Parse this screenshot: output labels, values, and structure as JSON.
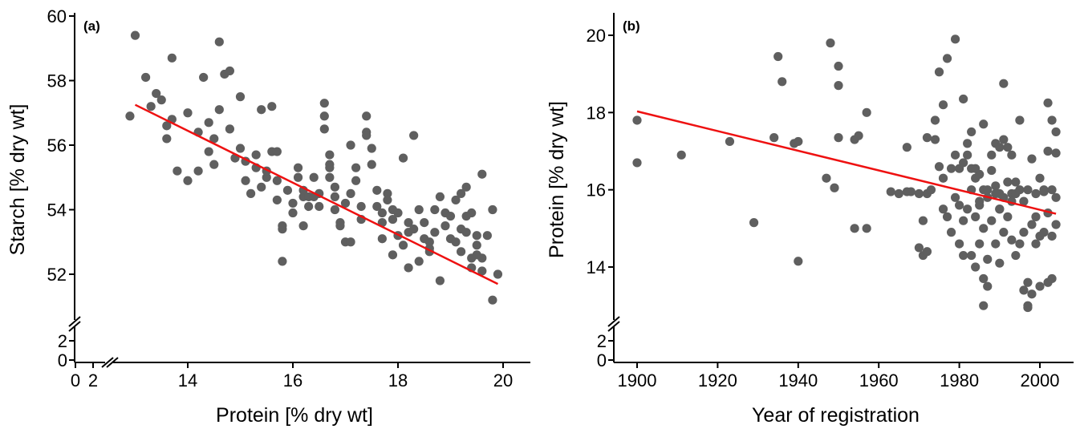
{
  "chart_data": [
    {
      "type": "scatter",
      "panel_label": "(a)",
      "xlabel": "Protein [% dry wt]",
      "ylabel": "Starch [% dry wt]",
      "xlim": [
        12.5,
        20.5
      ],
      "ylim": [
        51,
        60
      ],
      "x_ticks": [
        14,
        16,
        18,
        20
      ],
      "y_ticks": [
        52,
        54,
        56,
        58,
        60
      ],
      "x_break_labels": [
        "0",
        "2"
      ],
      "y_break_labels": [
        "2",
        "0"
      ],
      "grid": false,
      "fit_line": {
        "x": [
          13.0,
          19.9
        ],
        "y": [
          57.25,
          51.7
        ],
        "color": "#ee1111"
      },
      "points": [
        [
          13.0,
          59.4
        ],
        [
          13.2,
          58.1
        ],
        [
          12.9,
          56.9
        ],
        [
          13.3,
          57.2
        ],
        [
          13.4,
          57.6
        ],
        [
          13.5,
          57.4
        ],
        [
          13.6,
          56.2
        ],
        [
          13.6,
          56.6
        ],
        [
          13.7,
          56.8
        ],
        [
          13.7,
          58.7
        ],
        [
          13.8,
          55.2
        ],
        [
          14.0,
          54.9
        ],
        [
          14.0,
          57.0
        ],
        [
          14.2,
          55.2
        ],
        [
          14.2,
          56.4
        ],
        [
          14.3,
          58.1
        ],
        [
          14.4,
          55.8
        ],
        [
          14.4,
          56.7
        ],
        [
          14.5,
          56.2
        ],
        [
          14.5,
          55.4
        ],
        [
          14.6,
          57.1
        ],
        [
          14.6,
          59.2
        ],
        [
          14.7,
          58.2
        ],
        [
          14.8,
          58.3
        ],
        [
          14.8,
          56.5
        ],
        [
          14.9,
          55.6
        ],
        [
          15.0,
          55.9
        ],
        [
          15.0,
          57.5
        ],
        [
          15.1,
          55.5
        ],
        [
          15.1,
          54.9
        ],
        [
          15.2,
          54.5
        ],
        [
          15.3,
          55.7
        ],
        [
          15.3,
          55.3
        ],
        [
          15.4,
          57.1
        ],
        [
          15.4,
          54.7
        ],
        [
          15.5,
          55.0
        ],
        [
          15.5,
          55.2
        ],
        [
          15.6,
          55.8
        ],
        [
          15.6,
          57.2
        ],
        [
          15.7,
          55.8
        ],
        [
          15.7,
          54.9
        ],
        [
          15.7,
          54.3
        ],
        [
          15.8,
          53.4
        ],
        [
          15.8,
          53.5
        ],
        [
          15.8,
          52.4
        ],
        [
          15.9,
          54.6
        ],
        [
          16.0,
          54.2
        ],
        [
          16.0,
          53.9
        ],
        [
          16.1,
          55.3
        ],
        [
          16.1,
          55.0
        ],
        [
          16.2,
          54.6
        ],
        [
          16.2,
          54.4
        ],
        [
          16.3,
          54.4
        ],
        [
          16.3,
          54.1
        ],
        [
          16.4,
          55.0
        ],
        [
          16.4,
          54.4
        ],
        [
          16.5,
          54.1
        ],
        [
          16.5,
          54.5
        ],
        [
          16.6,
          57.3
        ],
        [
          16.6,
          56.9
        ],
        [
          16.6,
          56.5
        ],
        [
          16.7,
          55.7
        ],
        [
          16.7,
          55.4
        ],
        [
          16.7,
          55.3
        ],
        [
          16.7,
          55.0
        ],
        [
          16.8,
          54.7
        ],
        [
          16.8,
          54.4
        ],
        [
          16.8,
          54.0
        ],
        [
          16.9,
          53.6
        ],
        [
          16.9,
          53.5
        ],
        [
          17.0,
          53.0
        ],
        [
          17.0,
          54.2
        ],
        [
          17.1,
          54.5
        ],
        [
          17.1,
          56.0
        ],
        [
          17.2,
          55.3
        ],
        [
          17.2,
          54.9
        ],
        [
          17.3,
          54.1
        ],
        [
          17.3,
          53.7
        ],
        [
          17.4,
          56.4
        ],
        [
          17.4,
          56.9
        ],
        [
          17.4,
          56.3
        ],
        [
          17.5,
          55.9
        ],
        [
          17.5,
          55.4
        ],
        [
          17.6,
          54.6
        ],
        [
          17.6,
          54.1
        ],
        [
          17.7,
          53.6
        ],
        [
          17.7,
          53.1
        ],
        [
          17.7,
          53.9
        ],
        [
          17.8,
          54.5
        ],
        [
          17.8,
          54.3
        ],
        [
          17.9,
          54.0
        ],
        [
          17.9,
          53.7
        ],
        [
          18.0,
          53.9
        ],
        [
          18.0,
          53.2
        ],
        [
          18.1,
          52.9
        ],
        [
          18.1,
          55.6
        ],
        [
          18.2,
          53.6
        ],
        [
          18.2,
          53.3
        ],
        [
          18.3,
          53.4
        ],
        [
          18.3,
          56.3
        ],
        [
          18.4,
          54.0
        ],
        [
          18.4,
          52.4
        ],
        [
          18.5,
          53.1
        ],
        [
          18.5,
          53.6
        ],
        [
          18.6,
          52.8
        ],
        [
          18.6,
          52.7
        ],
        [
          18.7,
          53.3
        ],
        [
          18.7,
          54.0
        ],
        [
          18.8,
          51.8
        ],
        [
          18.8,
          54.4
        ],
        [
          18.9,
          53.5
        ],
        [
          18.9,
          53.9
        ],
        [
          19.0,
          53.8
        ],
        [
          19.0,
          53.1
        ],
        [
          19.1,
          53.0
        ],
        [
          19.1,
          54.3
        ],
        [
          19.2,
          54.5
        ],
        [
          19.2,
          53.4
        ],
        [
          19.3,
          53.3
        ],
        [
          19.3,
          54.7
        ],
        [
          19.4,
          53.9
        ],
        [
          19.4,
          52.2
        ],
        [
          19.5,
          52.6
        ],
        [
          19.5,
          52.9
        ],
        [
          19.6,
          52.5
        ],
        [
          19.6,
          55.1
        ],
        [
          19.7,
          53.2
        ],
        [
          19.8,
          54.0
        ],
        [
          19.5,
          53.2
        ],
        [
          19.2,
          52.7
        ],
        [
          19.4,
          52.5
        ],
        [
          19.8,
          51.2
        ],
        [
          19.9,
          52.0
        ],
        [
          19.6,
          52.1
        ],
        [
          19.3,
          53.8
        ],
        [
          18.2,
          52.2
        ],
        [
          18.6,
          53.0
        ],
        [
          17.9,
          52.6
        ],
        [
          17.1,
          53.0
        ],
        [
          16.2,
          53.5
        ]
      ]
    },
    {
      "type": "scatter",
      "panel_label": "(b)",
      "xlabel": "Year of registration",
      "ylabel": "Protein [% dry wt]",
      "xlim": [
        1895,
        2010
      ],
      "ylim": [
        12.5,
        20.5
      ],
      "x_ticks": [
        1900,
        1920,
        1940,
        1960,
        1980,
        2000
      ],
      "y_ticks": [
        14,
        16,
        18,
        20
      ],
      "y_break_labels": [
        "2",
        "0"
      ],
      "grid": false,
      "fit_line": {
        "x": [
          1900,
          2004
        ],
        "y": [
          18.03,
          15.38
        ],
        "color": "#ee1111"
      },
      "points": [
        [
          1900,
          17.8
        ],
        [
          1900,
          16.7
        ],
        [
          1911,
          16.9
        ],
        [
          1923,
          17.25
        ],
        [
          1929,
          15.15
        ],
        [
          1934,
          17.35
        ],
        [
          1935,
          19.45
        ],
        [
          1936,
          18.8
        ],
        [
          1939,
          17.2
        ],
        [
          1940,
          17.25
        ],
        [
          1940,
          14.15
        ],
        [
          1947,
          16.3
        ],
        [
          1948,
          19.8
        ],
        [
          1949,
          16.05
        ],
        [
          1950,
          19.2
        ],
        [
          1950,
          18.7
        ],
        [
          1950,
          17.35
        ],
        [
          1954,
          15.0
        ],
        [
          1954,
          17.3
        ],
        [
          1955,
          17.4
        ],
        [
          1957,
          15.0
        ],
        [
          1957,
          18.0
        ],
        [
          1963,
          15.95
        ],
        [
          1965,
          15.9
        ],
        [
          1967,
          17.1
        ],
        [
          1967,
          15.95
        ],
        [
          1968,
          15.95
        ],
        [
          1970,
          14.5
        ],
        [
          1970,
          15.9
        ],
        [
          1971,
          14.3
        ],
        [
          1971,
          15.2
        ],
        [
          1972,
          17.35
        ],
        [
          1972,
          14.4
        ],
        [
          1972,
          15.9
        ],
        [
          1973,
          16.0
        ],
        [
          1974,
          17.3
        ],
        [
          1974,
          17.8
        ],
        [
          1975,
          19.05
        ],
        [
          1975,
          16.6
        ],
        [
          1976,
          18.2
        ],
        [
          1976,
          16.3
        ],
        [
          1976,
          15.5
        ],
        [
          1977,
          19.4
        ],
        [
          1977,
          15.3
        ],
        [
          1978,
          16.55
        ],
        [
          1978,
          14.9
        ],
        [
          1979,
          19.9
        ],
        [
          1979,
          16.9
        ],
        [
          1979,
          15.8
        ],
        [
          1980,
          16.55
        ],
        [
          1980,
          15.6
        ],
        [
          1980,
          14.6
        ],
        [
          1981,
          18.35
        ],
        [
          1981,
          16.7
        ],
        [
          1981,
          15.2
        ],
        [
          1981,
          14.3
        ],
        [
          1982,
          17.2
        ],
        [
          1982,
          16.9
        ],
        [
          1982,
          15.5
        ],
        [
          1983,
          17.5
        ],
        [
          1983,
          16.55
        ],
        [
          1983,
          16.0
        ],
        [
          1983,
          14.3
        ],
        [
          1984,
          16.3
        ],
        [
          1984,
          15.3
        ],
        [
          1984,
          14.0
        ],
        [
          1985,
          16.4
        ],
        [
          1985,
          15.6
        ],
        [
          1985,
          14.6
        ],
        [
          1986,
          17.7
        ],
        [
          1986,
          16.0
        ],
        [
          1986,
          15.0
        ],
        [
          1986,
          13.7
        ],
        [
          1986,
          13.0
        ],
        [
          1987,
          15.8
        ],
        [
          1987,
          14.2
        ],
        [
          1987,
          13.5
        ],
        [
          1988,
          16.9
        ],
        [
          1988,
          16.5
        ],
        [
          1988,
          15.2
        ],
        [
          1989,
          17.2
        ],
        [
          1989,
          16.1
        ],
        [
          1989,
          14.6
        ],
        [
          1990,
          17.1
        ],
        [
          1990,
          15.9
        ],
        [
          1990,
          15.5
        ],
        [
          1990,
          14.1
        ],
        [
          1991,
          18.75
        ],
        [
          1991,
          17.3
        ],
        [
          1991,
          15.8
        ],
        [
          1991,
          14.9
        ],
        [
          1992,
          17.1
        ],
        [
          1992,
          16.2
        ],
        [
          1992,
          15.3
        ],
        [
          1993,
          16.9
        ],
        [
          1993,
          15.9
        ],
        [
          1993,
          14.7
        ],
        [
          1994,
          16.2
        ],
        [
          1994,
          15.9
        ],
        [
          1994,
          14.3
        ],
        [
          1995,
          17.8
        ],
        [
          1995,
          16.0
        ],
        [
          1995,
          14.6
        ],
        [
          1996,
          15.7
        ],
        [
          1996,
          14.9
        ],
        [
          1997,
          16.0
        ],
        [
          1997,
          13.6
        ],
        [
          1997,
          13.0
        ],
        [
          1998,
          16.8
        ],
        [
          1998,
          15.1
        ],
        [
          1998,
          13.3
        ],
        [
          1999,
          15.9
        ],
        [
          1999,
          15.3
        ],
        [
          2000,
          16.3
        ],
        [
          2000,
          14.8
        ],
        [
          2000,
          13.5
        ],
        [
          2001,
          16.0
        ],
        [
          2001,
          14.9
        ],
        [
          2002,
          18.25
        ],
        [
          2002,
          17.0
        ],
        [
          2002,
          15.4
        ],
        [
          2002,
          13.6
        ],
        [
          2003,
          17.8
        ],
        [
          2003,
          16.0
        ],
        [
          2003,
          14.8
        ],
        [
          2003,
          13.7
        ],
        [
          2004,
          17.5
        ],
        [
          2004,
          16.95
        ],
        [
          2004,
          15.8
        ],
        [
          2004,
          15.1
        ],
        [
          1997,
          12.95
        ],
        [
          1996,
          13.4
        ],
        [
          1985,
          15.7
        ],
        [
          1987,
          16.0
        ],
        [
          1989,
          15.9
        ],
        [
          1999,
          14.6
        ],
        [
          2001,
          15.95
        ],
        [
          1990,
          15.5
        ],
        [
          1984,
          16.55
        ],
        [
          1993,
          15.7
        ]
      ]
    }
  ]
}
